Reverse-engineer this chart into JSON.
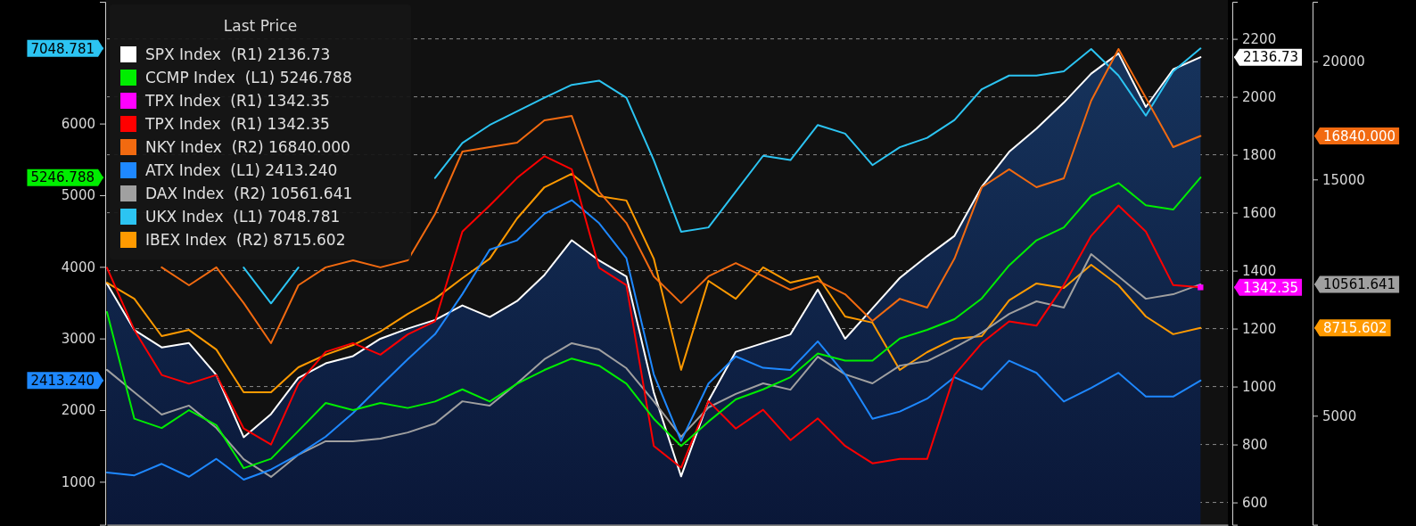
{
  "chart_data": {
    "type": "line",
    "legend_title": "Last Price",
    "legend": "top left",
    "grid": "y",
    "tick_labels": "y",
    "categories": [
      null,
      null,
      null,
      null,
      null,
      null,
      null,
      null,
      null,
      null,
      null,
      null,
      null,
      null,
      null,
      null,
      null,
      null,
      null,
      null,
      null,
      null,
      null,
      null,
      null,
      null,
      null,
      null,
      null,
      null,
      null,
      null,
      null,
      null,
      null,
      null,
      null,
      null,
      null,
      null,
      null
    ],
    "ylim": [
      400,
      7700
    ],
    "yticks": [
      1000,
      2000,
      3000,
      4000,
      5000,
      6000
    ],
    "y2lim": [
      523,
      2328
    ],
    "y2ticks": [
      600,
      800,
      1000,
      1200,
      1400,
      1600,
      1800,
      2000,
      2200
    ],
    "y3lim": [
      385,
      22520
    ],
    "y3ticks": [
      5000,
      15000,
      20000
    ],
    "series": [
      {
        "name": "SPX Index  (R1) 2136.73",
        "type": "area",
        "axis": "y2",
        "color": "#ffffff",
        "values": [
          1355,
          1195,
          1135,
          1150,
          1040,
          825,
          905,
          1030,
          1080,
          1105,
          1165,
          1200,
          1230,
          1280,
          1240,
          1295,
          1385,
          1505,
          1435,
          1380,
          980,
          690,
          950,
          1120,
          1150,
          1180,
          1335,
          1165,
          1270,
          1375,
          1450,
          1520,
          1690,
          1810,
          1890,
          1980,
          2080,
          2150,
          1965,
          2095,
          2136.73
        ]
      },
      {
        "name": "CCMP Index  (L1) 5246.788",
        "axis": "y",
        "color": "#00ee00",
        "values": [
          3370,
          1880,
          1750,
          2000,
          1790,
          1190,
          1320,
          1710,
          2100,
          2000,
          2100,
          2030,
          2120,
          2290,
          2120,
          2370,
          2560,
          2720,
          2620,
          2370,
          1880,
          1500,
          1840,
          2150,
          2290,
          2460,
          2790,
          2690,
          2690,
          3000,
          3120,
          3270,
          3560,
          4020,
          4370,
          4550,
          4990,
          5170,
          4860,
          4800,
          5246.788
        ]
      },
      {
        "name": "TPX Index  (R1) 1342.35",
        "axis": "y2",
        "color": "#ff00ff",
        "marker": "square",
        "values": [
          null,
          null,
          null,
          null,
          null,
          null,
          null,
          null,
          null,
          null,
          null,
          null,
          null,
          null,
          null,
          null,
          null,
          null,
          null,
          null,
          null,
          null,
          null,
          null,
          null,
          null,
          null,
          null,
          null,
          null,
          null,
          null,
          null,
          null,
          null,
          null,
          null,
          null,
          null,
          null,
          1342.35
        ]
      },
      {
        "name": "TPX Index  (R1) 1342.35",
        "axis": "y2",
        "color": "#ff0000",
        "values": [
          1410,
          1195,
          1040,
          1010,
          1040,
          855,
          800,
          1010,
          1120,
          1150,
          1110,
          1180,
          1225,
          1535,
          1625,
          1720,
          1795,
          1750,
          1410,
          1350,
          795,
          720,
          950,
          855,
          920,
          815,
          890,
          795,
          735,
          750,
          750,
          1040,
          1150,
          1225,
          1210,
          1350,
          1520,
          1625,
          1535,
          1350,
          1342.35
        ]
      },
      {
        "name": "NKY Index  (R2) 16840.000",
        "axis": "y3",
        "color": "#f26a10",
        "values": [
          null,
          null,
          11280,
          10520,
          11280,
          9770,
          8070,
          10520,
          11280,
          11580,
          11280,
          11580,
          13540,
          16180,
          16370,
          16560,
          17500,
          17690,
          14480,
          13160,
          10900,
          9770,
          10900,
          11460,
          10900,
          10330,
          10710,
          10140,
          9010,
          9950,
          9580,
          11650,
          14670,
          15430,
          14670,
          15050,
          18330,
          20520,
          18450,
          16370,
          16840
        ]
      },
      {
        "name": "ATX Index  (L1) 2413.240",
        "axis": "y",
        "color": "#1e88ff",
        "values": [
          1130,
          1090,
          1250,
          1070,
          1320,
          1030,
          1170,
          1380,
          1630,
          1960,
          2340,
          2710,
          3060,
          3620,
          4240,
          4370,
          4740,
          4930,
          4610,
          4120,
          2500,
          1570,
          2370,
          2750,
          2590,
          2560,
          2960,
          2500,
          1880,
          1980,
          2160,
          2460,
          2290,
          2690,
          2520,
          2120,
          2310,
          2520,
          2190,
          2190,
          2413.24
        ]
      },
      {
        "name": "DAX Index  (R2) 10561.641",
        "axis": "y3",
        "color": "#a0a0a0",
        "values": [
          6940,
          5990,
          5050,
          5430,
          4480,
          3160,
          2410,
          3350,
          3920,
          3920,
          4030,
          4290,
          4670,
          5610,
          5430,
          6370,
          7390,
          8070,
          7800,
          7010,
          5610,
          4110,
          5350,
          5920,
          6370,
          6100,
          7500,
          6750,
          6370,
          7120,
          7310,
          7880,
          8520,
          9310,
          9840,
          9580,
          11840,
          10900,
          9950,
          10140,
          10561.641
        ]
      },
      {
        "name": "UKX Index  (L1) 7048.781",
        "axis": "y",
        "color": "#2cc4f2",
        "values": [
          null,
          null,
          null,
          null,
          null,
          3990,
          3490,
          3990,
          null,
          null,
          null,
          null,
          5240,
          5730,
          5980,
          6170,
          6360,
          6540,
          6600,
          6360,
          5490,
          4490,
          4550,
          5050,
          5550,
          5490,
          5980,
          5860,
          5420,
          5670,
          5800,
          6050,
          6480,
          6670,
          6670,
          6730,
          7040,
          6670,
          6110,
          6730,
          7048.781
        ]
      },
      {
        "name": "IBEX Index  (R2) 8715.602",
        "axis": "y3",
        "color": "#ff9a00",
        "values": [
          10630,
          9950,
          8370,
          8630,
          7800,
          5990,
          5990,
          7050,
          7580,
          7990,
          8560,
          9310,
          9950,
          10820,
          11650,
          13350,
          14670,
          15240,
          14290,
          14110,
          11650,
          6940,
          10710,
          9950,
          11280,
          10630,
          10900,
          9200,
          8940,
          6940,
          7690,
          8260,
          8370,
          9880,
          10600,
          10410,
          11390,
          10520,
          9200,
          8450,
          8715.602
        ]
      }
    ],
    "ref_lines": [
      {
        "axis": "y",
        "value": 7048.781,
        "label": "7048.781",
        "color": "#2cc4f2"
      },
      {
        "axis": "y",
        "value": 5246.788,
        "label": "5246.788",
        "color": "#00ee00"
      },
      {
        "axis": "y",
        "value": 2413.24,
        "label": "2413.240",
        "color": "#1e88ff"
      },
      {
        "axis": "y2",
        "value": 2136.73,
        "label": "2136.73",
        "color": "#ffffff"
      },
      {
        "axis": "y2",
        "value": 1342.35,
        "label": "1342.35",
        "color": "#ff00ff"
      },
      {
        "axis": "y3",
        "value": 16840,
        "label": "16840.000",
        "color": "#f26a10"
      },
      {
        "axis": "y3",
        "value": 10561.641,
        "label": "10561.641",
        "color": "#a0a0a0"
      },
      {
        "axis": "y3",
        "value": 8715.602,
        "label": "8715.602",
        "color": "#ff9a00"
      }
    ]
  }
}
